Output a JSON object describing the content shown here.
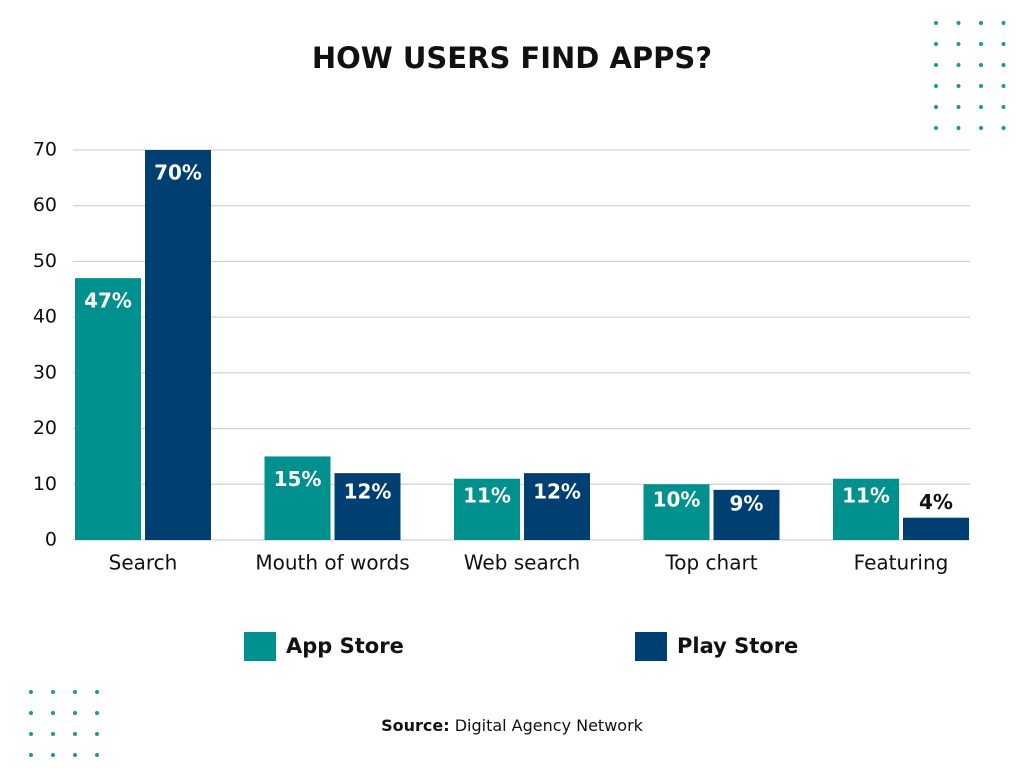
{
  "chart_data": {
    "type": "bar",
    "title": "HOW USERS FIND APPS?",
    "categories": [
      "Search",
      "Mouth of words",
      "Web search",
      "Top chart",
      "Featuring"
    ],
    "series": [
      {
        "name": "App Store",
        "color": "#00918f",
        "values": [
          47,
          15,
          11,
          10,
          11
        ],
        "value_labels": [
          "47%",
          "15%",
          "11%",
          "10%",
          "11%"
        ]
      },
      {
        "name": "Play Store",
        "color": "#003f72",
        "values": [
          70,
          12,
          12,
          9,
          4
        ],
        "value_labels": [
          "70%",
          "12%",
          "12%",
          "9%",
          "4%"
        ]
      }
    ],
    "ylim": [
      0,
      70
    ],
    "yticks": [
      0,
      10,
      20,
      30,
      40,
      50,
      60,
      70
    ],
    "grid": true,
    "source": {
      "label": "Source:",
      "text": "Digital Agency Network"
    }
  }
}
